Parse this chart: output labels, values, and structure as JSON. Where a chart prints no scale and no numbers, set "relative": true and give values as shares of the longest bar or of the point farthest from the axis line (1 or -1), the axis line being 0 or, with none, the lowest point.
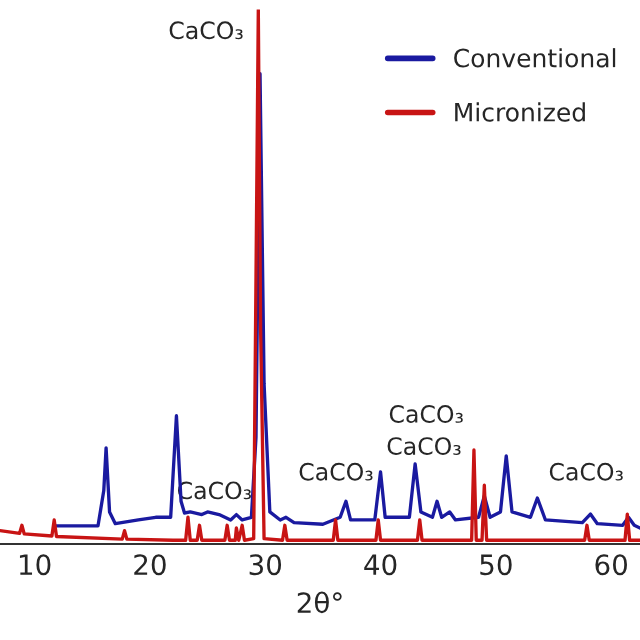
{
  "chart_data": {
    "type": "line",
    "relative": true,
    "xlabel": "2θ°",
    "xlim": [
      7,
      62.5
    ],
    "xticks": [
      10,
      20,
      30,
      40,
      50,
      60
    ],
    "tick_labels": "x",
    "grid": false,
    "legend": "top right",
    "series": [
      {
        "name": "Conventional",
        "color": "#1a1aa0",
        "x": [
          11.7,
          15.5,
          16.0,
          16.2,
          16.5,
          17,
          19,
          20.5,
          21.8,
          22.3,
          22.7,
          23.0,
          23.5,
          24.5,
          25,
          26,
          27,
          27.5,
          28,
          28.8,
          29.2,
          29.55,
          29.9,
          30.4,
          31.3,
          31.8,
          32.5,
          35,
          36.5,
          37.0,
          37.4,
          39.5,
          40.0,
          40.4,
          42.5,
          43.0,
          43.5,
          44.5,
          44.9,
          45.3,
          46.0,
          46.5,
          48.5,
          49.0,
          49.5,
          50.4,
          50.9,
          51.4,
          53.0,
          53.6,
          54.3,
          57.5,
          58.2,
          58.8,
          61,
          61.5,
          62.0,
          62.5
        ],
        "values": [
          0.034,
          0.034,
          0.1,
          0.18,
          0.06,
          0.038,
          0.045,
          0.05,
          0.05,
          0.24,
          0.08,
          0.058,
          0.06,
          0.055,
          0.06,
          0.055,
          0.045,
          0.055,
          0.045,
          0.05,
          0.2,
          0.88,
          0.3,
          0.06,
          0.045,
          0.05,
          0.04,
          0.037,
          0.05,
          0.08,
          0.045,
          0.045,
          0.135,
          0.05,
          0.05,
          0.15,
          0.06,
          0.05,
          0.08,
          0.05,
          0.06,
          0.045,
          0.05,
          0.09,
          0.05,
          0.06,
          0.165,
          0.06,
          0.05,
          0.086,
          0.045,
          0.04,
          0.056,
          0.038,
          0.035,
          0.05,
          0.035,
          0.03
        ]
      },
      {
        "name": "Micronized",
        "color": "#c81414",
        "x": [
          7,
          8.7,
          8.9,
          9.1,
          11.5,
          11.7,
          11.9,
          17.6,
          17.8,
          18,
          22,
          23.1,
          23.3,
          23.5,
          24.1,
          24.3,
          24.5,
          26.5,
          26.7,
          26.9,
          27.4,
          27.5,
          27.7,
          28.0,
          28.2,
          29.0,
          29.2,
          29.4,
          29.6,
          29.9,
          31.5,
          31.7,
          31.9,
          35.9,
          36.1,
          36.3,
          39.6,
          39.8,
          40.0,
          43.2,
          43.4,
          43.6,
          47.9,
          48.1,
          48.3,
          48.8,
          49.0,
          49.2,
          57.7,
          57.9,
          58.1,
          61.2,
          61.4,
          61.6,
          62.5
        ],
        "values": [
          0.025,
          0.02,
          0.035,
          0.019,
          0.015,
          0.045,
          0.014,
          0.009,
          0.025,
          0.009,
          0.007,
          0.007,
          0.05,
          0.007,
          0.007,
          0.035,
          0.007,
          0.007,
          0.035,
          0.007,
          0.007,
          0.03,
          0.007,
          0.035,
          0.007,
          0.01,
          0.5,
          1.0,
          0.4,
          0.01,
          0.007,
          0.035,
          0.007,
          0.007,
          0.045,
          0.007,
          0.007,
          0.045,
          0.007,
          0.007,
          0.045,
          0.007,
          0.007,
          0.176,
          0.007,
          0.007,
          0.11,
          0.007,
          0.007,
          0.035,
          0.007,
          0.007,
          0.056,
          0.007,
          0.007
        ]
      }
    ],
    "annotations": [
      "CaCO₃",
      "CaCO₃",
      "CaCO₃",
      "CaCO₃",
      "CaCO₃",
      "CaCO₃"
    ]
  }
}
